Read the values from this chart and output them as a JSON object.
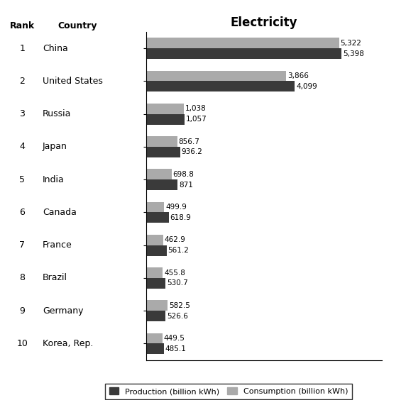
{
  "countries": [
    "China",
    "United States",
    "Russia",
    "Japan",
    "India",
    "Canada",
    "France",
    "Brazil",
    "Germany",
    "Korea, Rep."
  ],
  "ranks": [
    "1",
    "2",
    "3",
    "4",
    "5",
    "6",
    "7",
    "8",
    "9",
    "10"
  ],
  "production": [
    5398,
    4099,
    1057,
    936.2,
    871,
    618.9,
    561.2,
    530.7,
    526.6,
    485.1
  ],
  "consumption": [
    5322,
    3866,
    1038,
    856.7,
    698.8,
    499.9,
    462.9,
    455.8,
    582.5,
    449.5
  ],
  "production_labels": [
    "5,398",
    "4,099",
    "1,057",
    "936.2",
    "871",
    "618.9",
    "561.2",
    "530.7",
    "526.6",
    "485.1"
  ],
  "consumption_labels": [
    "5,322",
    "3,866",
    "1,038",
    "856.7",
    "698.8",
    "499.9",
    "462.9",
    "455.8",
    "582.5",
    "449.5"
  ],
  "production_color": "#3a3a3a",
  "consumption_color": "#aaaaaa",
  "title": "Electricity",
  "rank_label": "Rank",
  "country_label": "Country",
  "legend_production": "Production (billion kWh)",
  "legend_consumption": "Consumption (billion kWh)",
  "background_color": "#ffffff",
  "bar_height": 0.32,
  "xlim_max": 6500
}
